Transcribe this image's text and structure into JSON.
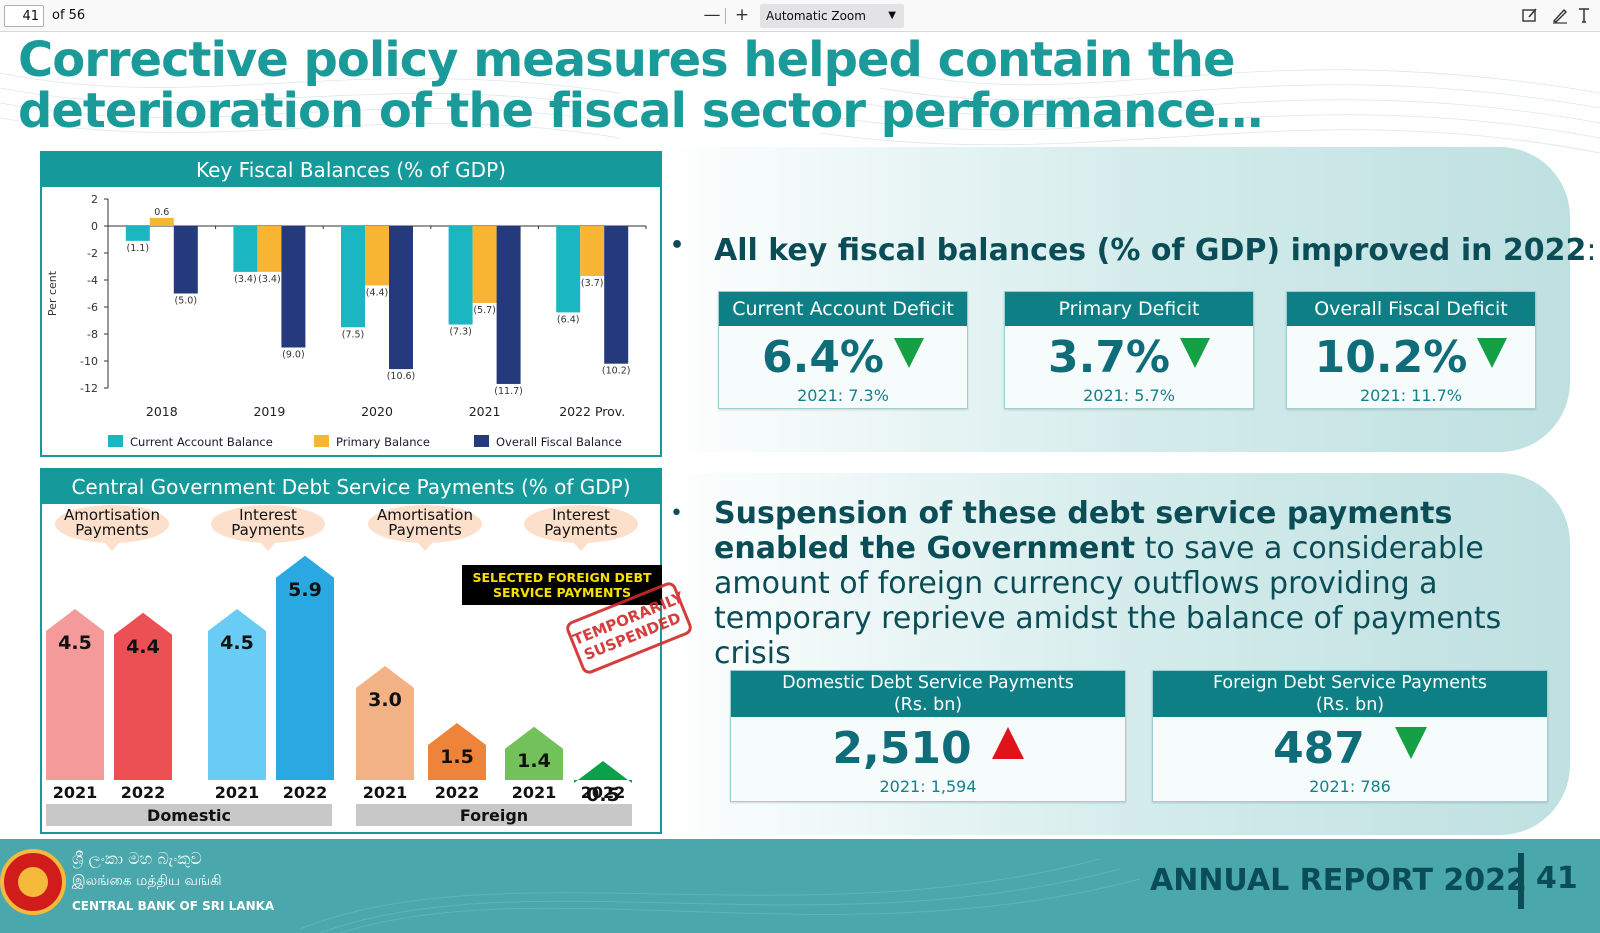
{
  "toolbar": {
    "page_number": "41",
    "page_count": "of 56",
    "zoom_out": "—",
    "zoom_in": "+",
    "zoom_label": "Automatic Zoom"
  },
  "slide": {
    "title": "Corrective policy measures helped contain the deterioration of the fiscal sector performance…",
    "fiscal_box_title": "Key Fiscal Balances (% of GDP)",
    "debt_box_title": "Central Government Debt Service Payments (% of GDP)",
    "bullet1": "All key fiscal balances (% of GDP) improved in 2022",
    "bullet1_colon": ":",
    "bullet2_bold": "Suspension of these debt service payments enabled the Government",
    "bullet2_rest": " to save a considerable amount of foreign currency outflows providing a temporary reprieve amidst the balance of payments crisis",
    "cards": [
      {
        "title": "Current Account Deficit",
        "value": "6.4%",
        "prev": "2021: 7.3%",
        "trend": "down"
      },
      {
        "title": "Primary Deficit",
        "value": "3.7%",
        "prev": "2021: 5.7%",
        "trend": "down"
      },
      {
        "title": "Overall Fiscal Deficit",
        "value": "10.2%",
        "prev": "2021: 11.7%",
        "trend": "down"
      }
    ],
    "debt_cards": [
      {
        "title_line1": "Domestic Debt Service Payments",
        "title_line2": "(Rs. bn)",
        "value": "2,510",
        "prev": "2021: 1,594",
        "trend": "up"
      },
      {
        "title_line1": "Foreign Debt Service Payments",
        "title_line2": "(Rs. bn)",
        "value": "487",
        "prev": "2021: 786",
        "trend": "down"
      }
    ],
    "footer": {
      "bank_sinhala": "ශ්‍රී ලංකා මහ බැංකුව",
      "bank_tamil": "இலங்கை மத்திய வங்கி",
      "bank_english": "CENTRAL BANK OF SRI LANKA",
      "annual_report": "ANNUAL REPORT 2022",
      "page": "41"
    },
    "debt_chart": {
      "stamp_box": "SELECTED FOREIGN DEBT SERVICE PAYMENTS",
      "stamp_line1": "TEMPORARILY",
      "stamp_line2": "SUSPENDED"
    }
  },
  "chart_data": [
    {
      "type": "bar",
      "title": "Key Fiscal Balances (% of GDP)",
      "ylabel": "Per cent",
      "categories": [
        "2018",
        "2019",
        "2020",
        "2021",
        "2022 Prov."
      ],
      "ylim": [
        -12,
        2
      ],
      "yticks": [
        2,
        0,
        -2,
        -4,
        -6,
        -8,
        -10,
        -12
      ],
      "ytick_labels": [
        "2",
        "0",
        "-2",
        "-4",
        "-6",
        "-8",
        "-10",
        "-12"
      ],
      "series": [
        {
          "name": "Current Account Balance",
          "color": "#1ab6c1",
          "values": [
            -1.1,
            -3.4,
            -7.5,
            -7.3,
            -6.4
          ],
          "labels": [
            "(1.1)",
            "(3.4)",
            "(7.5)",
            "(7.3)",
            "(6.4)"
          ]
        },
        {
          "name": "Primary Balance",
          "color": "#f8b533",
          "values": [
            0.6,
            -3.4,
            -4.4,
            -5.7,
            -3.7
          ],
          "labels": [
            "0.6",
            "(3.4)",
            "(4.4)",
            "(5.7)",
            "(3.7)"
          ]
        },
        {
          "name": "Overall Fiscal Balance",
          "color": "#253a7c",
          "values": [
            -5.0,
            -9.0,
            -10.6,
            -11.7,
            -10.2
          ],
          "labels": [
            "(5.0)",
            "(9.0)",
            "(10.6)",
            "(11.7)",
            "(10.2)"
          ]
        }
      ],
      "legend": "bottom",
      "grid": false
    },
    {
      "type": "bar",
      "title": "Central Government Debt Service Payments (% of GDP)",
      "groups": [
        "Domestic",
        "Foreign"
      ],
      "subgroups": [
        "Amortisation Payments",
        "Interest Payments",
        "Amortisation Payments",
        "Interest Payments"
      ],
      "bars": [
        {
          "group": "Domestic",
          "type": "Amortisation Payments",
          "year": "2021",
          "value": 4.5,
          "label": "4.5",
          "color": "#f59a9a"
        },
        {
          "group": "Domestic",
          "type": "Amortisation Payments",
          "year": "2022",
          "value": 4.4,
          "label": "4.4",
          "color": "#ec4f54"
        },
        {
          "group": "Domestic",
          "type": "Interest Payments",
          "year": "2021",
          "value": 4.5,
          "label": "4.5",
          "color": "#69ccf4"
        },
        {
          "group": "Domestic",
          "type": "Interest Payments",
          "year": "2022",
          "value": 5.9,
          "label": "5.9",
          "color": "#2aa8e2"
        },
        {
          "group": "Foreign",
          "type": "Amortisation Payments",
          "year": "2021",
          "value": 3.0,
          "label": "3.0",
          "color": "#f2b285"
        },
        {
          "group": "Foreign",
          "type": "Amortisation Payments",
          "year": "2022",
          "value": 1.5,
          "label": "1.5",
          "color": "#ee843a"
        },
        {
          "group": "Foreign",
          "type": "Interest Payments",
          "year": "2021",
          "value": 1.4,
          "label": "1.4",
          "color": "#72c15b"
        },
        {
          "group": "Foreign",
          "type": "Interest Payments",
          "year": "2022",
          "value": 0.5,
          "label": "0.5",
          "color": "#0ba14b"
        }
      ]
    }
  ]
}
